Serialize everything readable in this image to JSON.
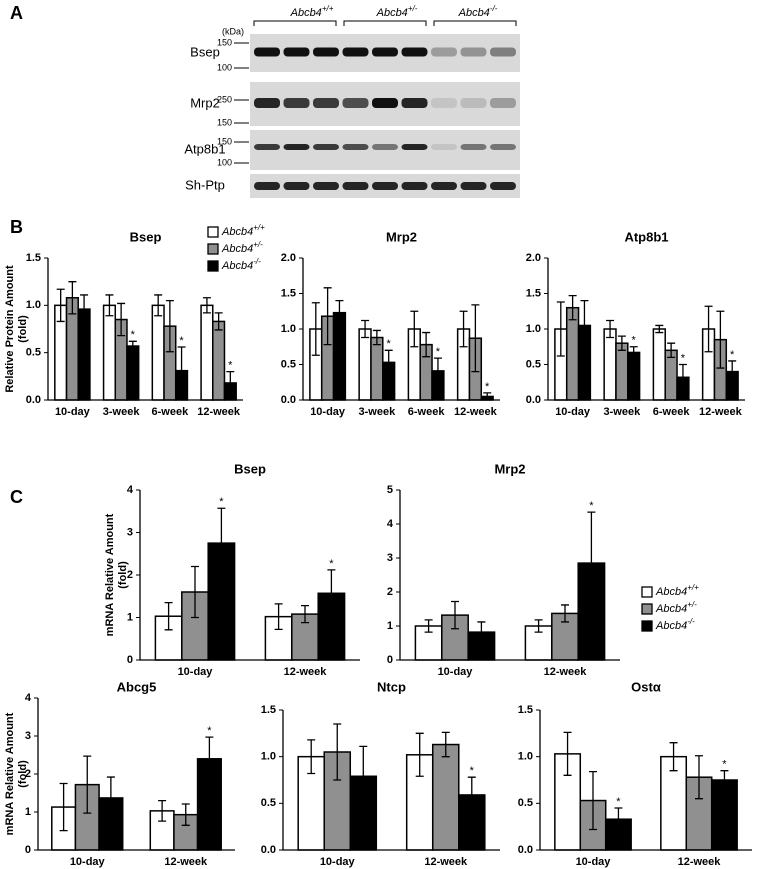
{
  "panel_labels": [
    "A",
    "B",
    "C"
  ],
  "blot": {
    "unit": "(kDa)",
    "groups": [
      {
        "gene": "Abcb4",
        "genotype": "+/+"
      },
      {
        "gene": "Abcb4",
        "genotype": "+/-"
      },
      {
        "gene": "Abcb4",
        "genotype": "-/-"
      }
    ],
    "rows": [
      {
        "label": "Bsep",
        "markers": [
          150,
          100
        ]
      },
      {
        "label": "Mrp2",
        "markers": [
          250,
          150
        ]
      },
      {
        "label": "Atp8b1",
        "markers": [
          150,
          100
        ]
      },
      {
        "label": "Sh-Ptp",
        "markers": []
      }
    ]
  },
  "chart_data": [
    {
      "type": "bar",
      "title": "Bsep",
      "ylabel": [
        "Relative Protein Amount",
        "(fold)"
      ],
      "legend": true,
      "categories": [
        "10-day",
        "3-week",
        "6-week",
        "12-week"
      ],
      "ylim": [
        0,
        1.5
      ],
      "yticks": [
        {
          "value": 0,
          "label": "0.0"
        },
        0.5,
        {
          "value": 1,
          "label": "1.0"
        },
        1.5
      ],
      "series": [
        {
          "name": "Abcb4+/+",
          "color": "#ffffff",
          "values": [
            1.0,
            1.0,
            1.0,
            1.0
          ],
          "errors": [
            0.17,
            0.11,
            0.11,
            0.08
          ],
          "significance": [
            null,
            null,
            null,
            null
          ]
        },
        {
          "name": "Abcb4+/-",
          "color": "#909090",
          "values": [
            1.08,
            0.85,
            0.78,
            0.83
          ],
          "errors": [
            0.17,
            0.17,
            0.27,
            0.09
          ],
          "significance": [
            null,
            null,
            null,
            null
          ]
        },
        {
          "name": "Abcb4-/-",
          "color": "#000000",
          "values": [
            0.96,
            0.57,
            0.31,
            0.18
          ],
          "errors": [
            0.15,
            0.05,
            0.25,
            0.12
          ],
          "significance": [
            null,
            "*",
            "*",
            "*"
          ]
        }
      ]
    },
    {
      "type": "bar",
      "title": "Mrp2",
      "categories": [
        "10-day",
        "3-week",
        "6-week",
        "12-week"
      ],
      "ylim": [
        0,
        2
      ],
      "yticks": [
        {
          "value": 0,
          "label": "0.0"
        },
        0.5,
        {
          "value": 1,
          "label": "1.0"
        },
        1.5,
        {
          "value": 2,
          "label": "2.0"
        }
      ],
      "series": [
        {
          "name": "Abcb4+/+",
          "color": "#ffffff",
          "values": [
            1.0,
            1.0,
            1.0,
            1.0
          ],
          "errors": [
            0.37,
            0.12,
            0.25,
            0.25
          ],
          "significance": [
            null,
            null,
            null,
            null
          ]
        },
        {
          "name": "Abcb4+/-",
          "color": "#909090",
          "values": [
            1.18,
            0.88,
            0.78,
            0.87
          ],
          "errors": [
            0.4,
            0.1,
            0.17,
            0.47
          ],
          "significance": [
            null,
            null,
            null,
            null
          ]
        },
        {
          "name": "Abcb4-/-",
          "color": "#000000",
          "values": [
            1.23,
            0.53,
            0.41,
            0.05
          ],
          "errors": [
            0.17,
            0.17,
            0.18,
            0.05
          ],
          "significance": [
            null,
            "*",
            "*",
            "*"
          ]
        }
      ]
    },
    {
      "type": "bar",
      "title": "Atp8b1",
      "categories": [
        "10-day",
        "3-week",
        "6-week",
        "12-week"
      ],
      "ylim": [
        0,
        2
      ],
      "yticks": [
        {
          "value": 0,
          "label": "0.0"
        },
        0.5,
        {
          "value": 1,
          "label": "1.0"
        },
        1.5,
        {
          "value": 2,
          "label": "2.0"
        }
      ],
      "series": [
        {
          "name": "Abcb4+/+",
          "color": "#ffffff",
          "values": [
            1.0,
            1.0,
            1.0,
            1.0
          ],
          "errors": [
            0.38,
            0.12,
            0.05,
            0.32
          ],
          "significance": [
            null,
            null,
            null,
            null
          ]
        },
        {
          "name": "Abcb4+/-",
          "color": "#909090",
          "values": [
            1.3,
            0.8,
            0.7,
            0.85
          ],
          "errors": [
            0.17,
            0.1,
            0.1,
            0.4
          ],
          "significance": [
            null,
            null,
            null,
            null
          ]
        },
        {
          "name": "Abcb4-/-",
          "color": "#000000",
          "values": [
            1.05,
            0.67,
            0.32,
            0.4
          ],
          "errors": [
            0.35,
            0.08,
            0.18,
            0.15
          ],
          "significance": [
            null,
            "*",
            "*",
            "*"
          ]
        }
      ]
    },
    {
      "type": "bar",
      "title": "Bsep",
      "ylabel": [
        "mRNA Relative Amount",
        "(fold)"
      ],
      "categories": [
        "10-day",
        "12-week"
      ],
      "ylim": [
        0,
        4
      ],
      "yticks": [
        0,
        1,
        2,
        3,
        4
      ],
      "series": [
        {
          "name": "Abcb4+/+",
          "color": "#ffffff",
          "values": [
            1.03,
            1.02
          ],
          "errors": [
            0.32,
            0.3
          ],
          "significance": [
            null,
            null
          ]
        },
        {
          "name": "Abcb4+/-",
          "color": "#909090",
          "values": [
            1.6,
            1.08
          ],
          "errors": [
            0.6,
            0.2
          ],
          "significance": [
            null,
            null
          ]
        },
        {
          "name": "Abcb4-/-",
          "color": "#000000",
          "values": [
            2.75,
            1.57
          ],
          "errors": [
            0.82,
            0.55
          ],
          "significance": [
            "*",
            "*"
          ]
        }
      ]
    },
    {
      "type": "bar",
      "title": "Mrp2",
      "legend": true,
      "categories": [
        "10-day",
        "12-week"
      ],
      "ylim": [
        0,
        5
      ],
      "yticks": [
        0,
        1,
        2,
        3,
        4,
        5
      ],
      "series": [
        {
          "name": "Abcb4+/+",
          "color": "#ffffff",
          "values": [
            1.0,
            1.0
          ],
          "errors": [
            0.18,
            0.18
          ],
          "significance": [
            null,
            null
          ]
        },
        {
          "name": "Abcb4+/-",
          "color": "#909090",
          "values": [
            1.32,
            1.37
          ],
          "errors": [
            0.4,
            0.25
          ],
          "significance": [
            null,
            null
          ]
        },
        {
          "name": "Abcb4-/-",
          "color": "#000000",
          "values": [
            0.82,
            2.85
          ],
          "errors": [
            0.3,
            1.5
          ],
          "significance": [
            null,
            "*"
          ]
        }
      ]
    },
    {
      "type": "bar",
      "title": "Abcg5",
      "ylabel": [
        "mRNA Relative Amount",
        "(fold)"
      ],
      "categories": [
        "10-day",
        "12-week"
      ],
      "ylim": [
        0,
        4
      ],
      "yticks": [
        0,
        1,
        2,
        3,
        4
      ],
      "series": [
        {
          "name": "Abcb4+/+",
          "color": "#ffffff",
          "values": [
            1.13,
            1.03
          ],
          "errors": [
            0.62,
            0.27
          ],
          "significance": [
            null,
            null
          ]
        },
        {
          "name": "Abcb4+/-",
          "color": "#909090",
          "values": [
            1.72,
            0.93
          ],
          "errors": [
            0.75,
            0.28
          ],
          "significance": [
            null,
            null
          ]
        },
        {
          "name": "Abcb4-/-",
          "color": "#000000",
          "values": [
            1.37,
            2.4
          ],
          "errors": [
            0.55,
            0.57
          ],
          "significance": [
            null,
            "*"
          ]
        }
      ]
    },
    {
      "type": "bar",
      "title": "Ntcp",
      "categories": [
        "10-day",
        "12-week"
      ],
      "ylim": [
        0,
        1.5
      ],
      "yticks": [
        {
          "value": 0,
          "label": "0.0"
        },
        0.5,
        {
          "value": 1,
          "label": "1.0"
        },
        1.5
      ],
      "series": [
        {
          "name": "Abcb4+/+",
          "color": "#ffffff",
          "values": [
            1.0,
            1.02
          ],
          "errors": [
            0.18,
            0.23
          ],
          "significance": [
            null,
            null
          ]
        },
        {
          "name": "Abcb4+/-",
          "color": "#909090",
          "values": [
            1.05,
            1.13
          ],
          "errors": [
            0.3,
            0.13
          ],
          "significance": [
            null,
            null
          ]
        },
        {
          "name": "Abcb4-/-",
          "color": "#000000",
          "values": [
            0.79,
            0.59
          ],
          "errors": [
            0.32,
            0.19
          ],
          "significance": [
            null,
            "*"
          ]
        }
      ]
    },
    {
      "type": "bar",
      "title": "Ostα",
      "categories": [
        "10-day",
        "12-week"
      ],
      "ylim": [
        0,
        1.5
      ],
      "yticks": [
        {
          "value": 0,
          "label": "0.0"
        },
        0.5,
        {
          "value": 1,
          "label": "1.0"
        },
        1.5
      ],
      "series": [
        {
          "name": "Abcb4+/+",
          "color": "#ffffff",
          "values": [
            1.03,
            1.0
          ],
          "errors": [
            0.23,
            0.15
          ],
          "significance": [
            null,
            null
          ]
        },
        {
          "name": "Abcb4+/-",
          "color": "#909090",
          "values": [
            0.53,
            0.78
          ],
          "errors": [
            0.31,
            0.23
          ],
          "significance": [
            null,
            null
          ]
        },
        {
          "name": "Abcb4-/-",
          "color": "#000000",
          "values": [
            0.33,
            0.75
          ],
          "errors": [
            0.12,
            0.1
          ],
          "significance": [
            "*",
            "*"
          ]
        }
      ]
    }
  ]
}
